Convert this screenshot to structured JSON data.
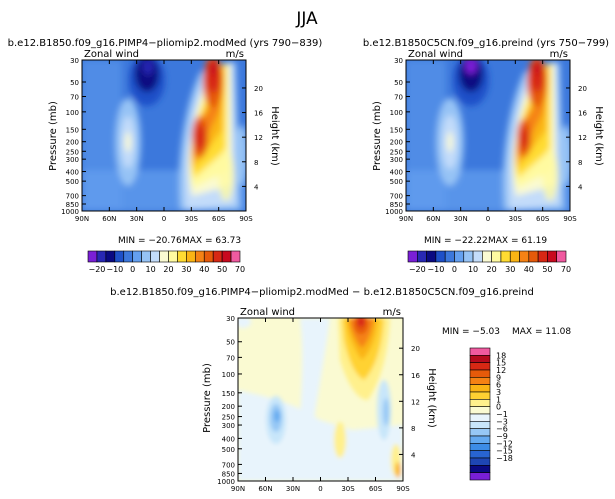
{
  "figure_title": "JJA",
  "panels": [
    {
      "title": "b.e12.B1850.f09_g16.PIMP4−pliomip2.modMed  (yrs 790−839)",
      "var_label": "Zonal wind",
      "units": "m/s",
      "ylabel": "Pressure (mb)",
      "y2label": "Height (km)",
      "min_text": "MIN = −20.76",
      "max_text": "MAX =  63.73"
    },
    {
      "title": "b.e12.B1850C5CN.f09_g16.preind  (yrs 750−799)",
      "var_label": "Zonal wind",
      "units": "m/s",
      "ylabel": "Pressure (mb)",
      "y2label": "Height (km)",
      "min_text": "MIN = −22.22",
      "max_text": "MAX =  61.19"
    },
    {
      "title": "b.e12.B1850.f09_g16.PIMP4−pliomip2.modMed − b.e12.B1850C5CN.f09_g16.preind",
      "var_label": "Zonal wind",
      "units": "m/s",
      "ylabel": "Pressure (mb)",
      "y2label": "Height (km)",
      "min_text": "MIN =  −5.03",
      "max_text": "MAX =  11.08"
    }
  ],
  "colors": {
    "field_scale": [
      "#7a1fd6",
      "#2828b4",
      "#0a0a82",
      "#1e50c8",
      "#3c78dc",
      "#64a0f0",
      "#96c3f5",
      "#c3dcfa",
      "#fafad2",
      "#fffaa0",
      "#ffdc32",
      "#fab414",
      "#f58214",
      "#e65a0a",
      "#d72814",
      "#c80a1e",
      "#f05aa0"
    ],
    "diff_scale": [
      "#7a1fd6",
      "#0a0a82",
      "#1e46b4",
      "#2864d2",
      "#3c8ce6",
      "#64aaf0",
      "#96c8f5",
      "#c8e6fa",
      "#e8f4fc",
      "#fafad2",
      "#fff08c",
      "#ffd232",
      "#fab414",
      "#f58214",
      "#e65a0a",
      "#d72814",
      "#b40a1e",
      "#f05aa0"
    ]
  },
  "chart_data": [
    {
      "type": "contour",
      "title": "b.e12.B1850.f09_g16.PIMP4−pliomip2.modMed  (yrs 790−839)",
      "variable": "Zonal wind (m/s), JJA zonal mean",
      "x_ticks": [
        "90N",
        "60N",
        "30N",
        "0",
        "30S",
        "60S",
        "90S"
      ],
      "y_ticks": [
        "30",
        "50",
        "70",
        "100",
        "150",
        "200",
        "250",
        "300",
        "400",
        "500",
        "700",
        "850",
        "1000"
      ],
      "y2_ticks": [
        "4",
        "8",
        "12",
        "16",
        "20"
      ],
      "xlabel": "",
      "ylabel": "Pressure (mb)",
      "y2label": "Height (km)",
      "ylim": [
        1000,
        30
      ],
      "min": -20.76,
      "max": 63.73,
      "jets": [
        {
          "lat": 36,
          "p": 200,
          "speed": 45
        },
        {
          "lat": 58,
          "p": 30,
          "speed": 63.73
        },
        {
          "lat": -20,
          "p": 30,
          "speed": -20.76
        },
        {
          "lat": 44,
          "p": 180,
          "speed": 14
        }
      ],
      "colorbar_levels": [
        "−20",
        "−10",
        "0",
        "10",
        "20",
        "30",
        "40",
        "50",
        "70"
      ]
    },
    {
      "type": "contour",
      "title": "b.e12.B1850C5CN.f09_g16.preind  (yrs 750−799)",
      "variable": "Zonal wind (m/s), JJA zonal mean",
      "x_ticks": [
        "90N",
        "60N",
        "30N",
        "0",
        "30S",
        "60S",
        "90S"
      ],
      "y_ticks": [
        "30",
        "50",
        "70",
        "100",
        "150",
        "200",
        "250",
        "300",
        "400",
        "500",
        "700",
        "850",
        "1000"
      ],
      "y2_ticks": [
        "4",
        "8",
        "12",
        "16",
        "20"
      ],
      "xlabel": "",
      "ylabel": "Pressure (mb)",
      "y2label": "Height (km)",
      "ylim": [
        1000,
        30
      ],
      "min": -22.22,
      "max": 61.19,
      "jets": [
        {
          "lat": 36,
          "p": 200,
          "speed": 42
        },
        {
          "lat": 58,
          "p": 30,
          "speed": 61.19
        },
        {
          "lat": -20,
          "p": 30,
          "speed": -22.22
        },
        {
          "lat": 44,
          "p": 180,
          "speed": 12
        }
      ],
      "colorbar_levels": [
        "−20",
        "−10",
        "0",
        "10",
        "20",
        "30",
        "40",
        "50",
        "70"
      ]
    },
    {
      "type": "contour",
      "title": "b.e12.B1850.f09_g16.PIMP4−pliomip2.modMed − b.e12.B1850C5CN.f09_g16.preind",
      "variable": "Zonal wind difference (m/s), JJA zonal mean",
      "x_ticks": [
        "90N",
        "60N",
        "30N",
        "0",
        "30S",
        "60S",
        "90S"
      ],
      "y_ticks": [
        "30",
        "50",
        "70",
        "100",
        "150",
        "200",
        "250",
        "300",
        "400",
        "500",
        "700",
        "850",
        "1000"
      ],
      "y2_ticks": [
        "4",
        "8",
        "12",
        "16",
        "20"
      ],
      "xlabel": "",
      "ylabel": "Pressure (mb)",
      "y2label": "Height (km)",
      "ylim": [
        1000,
        30
      ],
      "min": -5.03,
      "max": 11.08,
      "features": [
        {
          "lat": 56,
          "p": 30,
          "value": 11.08
        },
        {
          "lat": 50,
          "p": 250,
          "value": 3
        },
        {
          "lat": 65,
          "p": 250,
          "value": -5.03
        }
      ],
      "colorbar_levels": [
        "18",
        "15",
        "12",
        "9",
        "6",
        "3",
        "1",
        "0",
        "−1",
        "−3",
        "−6",
        "−9",
        "−12",
        "−15",
        "−18"
      ]
    }
  ]
}
